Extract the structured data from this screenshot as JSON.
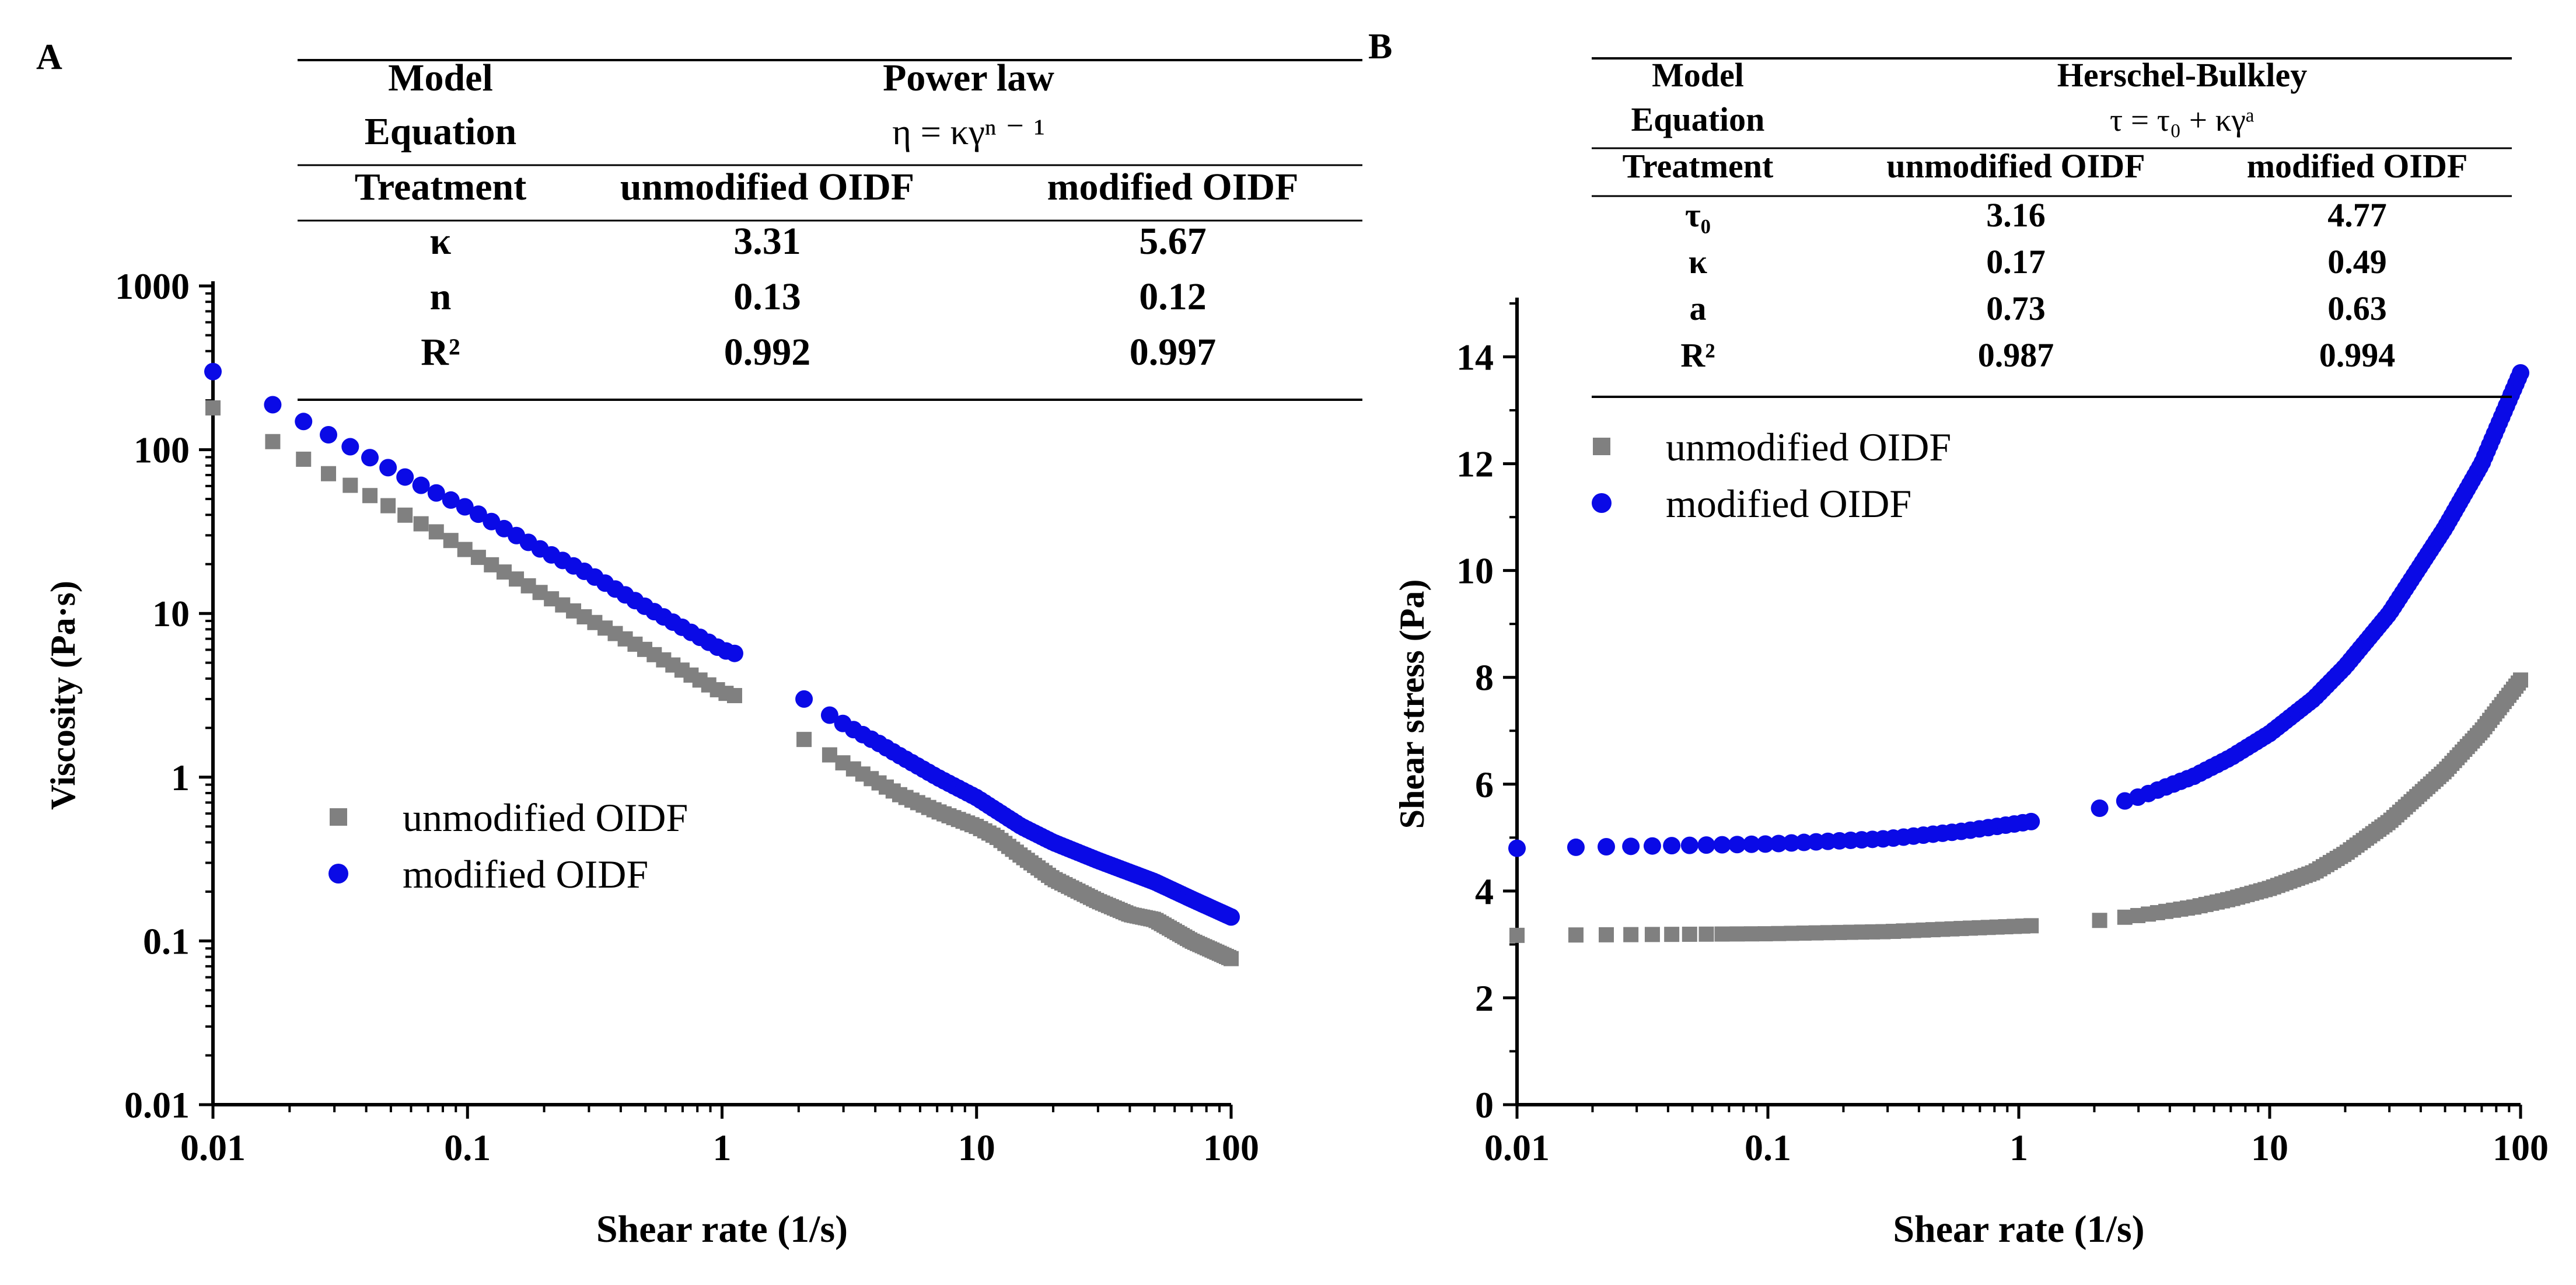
{
  "chart_data": [
    {
      "panel_label": "A",
      "type": "scatter",
      "x_scale": "log",
      "y_scale": "log",
      "xlabel": "Shear rate (1/s)",
      "ylabel": "Viscosity (Pa·s)",
      "xlim": [
        0.01,
        100
      ],
      "ylim": [
        0.01,
        1000
      ],
      "x_ticks": [
        "0.01",
        "0.1",
        "1",
        "10",
        "100"
      ],
      "y_ticks": [
        "0.01",
        "0.1",
        "1",
        "10",
        "100",
        "1000"
      ],
      "grid": false,
      "legend_position": "lower-left",
      "legend": [
        "unmodified OIDF",
        "modified OIDF"
      ],
      "series": [
        {
          "name": "unmodified OIDF",
          "color": "#808080",
          "marker": "square",
          "segments": [
            {
              "x_range": [
                0.01,
                1.12
              ],
              "count": 38,
              "anchors": [
                [
                  0.01,
                  180
                ],
                [
                  0.02,
                  98
                ],
                [
                  0.03,
                  68
                ],
                [
                  0.04,
                  54
                ],
                [
                  0.06,
                  38
                ],
                [
                  0.08,
                  30
                ],
                [
                  0.1,
                  24
                ],
                [
                  0.2,
                  13
                ],
                [
                  0.3,
                  9.2
                ],
                [
                  0.5,
                  6.0
                ],
                [
                  1.0,
                  3.3
                ],
                [
                  1.12,
                  3.15
                ]
              ]
            },
            {
              "x_range": [
                2.1,
                100
              ],
              "count": 110,
              "anchors": [
                [
                  2.1,
                  1.7
                ],
                [
                  3.1,
                  1.18
                ],
                [
                  4.1,
                  0.93
                ],
                [
                  5,
                  0.78
                ],
                [
                  7,
                  0.62
                ],
                [
                  10,
                  0.5
                ],
                [
                  12,
                  0.43
                ],
                [
                  15,
                  0.33
                ],
                [
                  20,
                  0.24
                ],
                [
                  30,
                  0.175
                ],
                [
                  40,
                  0.145
                ],
                [
                  50,
                  0.135
                ],
                [
                  70,
                  0.1
                ],
                [
                  100,
                  0.078
                ]
              ]
            }
          ]
        },
        {
          "name": "modified OIDF",
          "color": "#0a0ae6",
          "marker": "circle",
          "segments": [
            {
              "x_range": [
                0.01,
                1.12
              ],
              "count": 38,
              "anchors": [
                [
                  0.01,
                  300
                ],
                [
                  0.02,
                  165
                ],
                [
                  0.03,
                  118
                ],
                [
                  0.04,
                  92
                ],
                [
                  0.06,
                  65
                ],
                [
                  0.08,
                  52
                ],
                [
                  0.1,
                  44
                ],
                [
                  0.2,
                  24
                ],
                [
                  0.3,
                  17.5
                ],
                [
                  0.5,
                  11
                ],
                [
                  1.0,
                  6.0
                ],
                [
                  1.12,
                  5.7
                ]
              ]
            },
            {
              "x_range": [
                2.1,
                100
              ],
              "count": 110,
              "anchors": [
                [
                  2.1,
                  3.0
                ],
                [
                  3.1,
                  2.05
                ],
                [
                  4.1,
                  1.62
                ],
                [
                  5,
                  1.35
                ],
                [
                  7,
                  1.0
                ],
                [
                  10,
                  0.75
                ],
                [
                  15,
                  0.5
                ],
                [
                  20,
                  0.4
                ],
                [
                  30,
                  0.31
                ],
                [
                  50,
                  0.23
                ],
                [
                  70,
                  0.18
                ],
                [
                  100,
                  0.14
                ]
              ]
            }
          ]
        }
      ],
      "table": {
        "headers": [
          "Model",
          "Power law"
        ],
        "equation_label": "Equation",
        "equation": "η = κγⁿ ⁻ ¹",
        "columns": [
          "Treatment",
          "unmodified OIDF",
          "modified OIDF"
        ],
        "rows": [
          [
            "κ",
            "3.31",
            "5.67"
          ],
          [
            "n",
            "0.13",
            "0.12"
          ],
          [
            "R²",
            "0.992",
            "0.997"
          ]
        ]
      }
    },
    {
      "panel_label": "B",
      "type": "scatter",
      "x_scale": "log",
      "y_scale": "linear",
      "xlabel": "Shear rate (1/s)",
      "ylabel": "Shear stress (Pa)",
      "xlim": [
        0.01,
        100
      ],
      "ylim": [
        0,
        15
      ],
      "x_ticks": [
        "0.01",
        "0.1",
        "1",
        "10",
        "100"
      ],
      "y_ticks": [
        "0",
        "2",
        "4",
        "6",
        "8",
        "10",
        "12",
        "14"
      ],
      "grid": false,
      "legend_position": "upper-left",
      "legend": [
        "unmodified OIDF",
        "modified OIDF"
      ],
      "series": [
        {
          "name": "unmodified OIDF",
          "color": "#808080",
          "marker": "square",
          "segments": [
            {
              "x_range": [
                0.01,
                1.12
              ],
              "count": 38,
              "anchors": [
                [
                  0.01,
                  3.17
                ],
                [
                  0.1,
                  3.2
                ],
                [
                  0.3,
                  3.24
                ],
                [
                  0.6,
                  3.3
                ],
                [
                  1.12,
                  3.35
                ]
              ]
            },
            {
              "x_range": [
                2.1,
                100
              ],
              "count": 110,
              "anchors": [
                [
                  2.1,
                  3.45
                ],
                [
                  3.1,
                  3.55
                ],
                [
                  5,
                  3.7
                ],
                [
                  7,
                  3.85
                ],
                [
                  10,
                  4.05
                ],
                [
                  15,
                  4.35
                ],
                [
                  20,
                  4.7
                ],
                [
                  30,
                  5.3
                ],
                [
                  50,
                  6.25
                ],
                [
                  70,
                  7.0
                ],
                [
                  100,
                  7.95
                ]
              ]
            }
          ]
        },
        {
          "name": "modified OIDF",
          "color": "#0a0ae6",
          "marker": "circle",
          "segments": [
            {
              "x_range": [
                0.01,
                1.12
              ],
              "count": 38,
              "anchors": [
                [
                  0.01,
                  4.8
                ],
                [
                  0.1,
                  4.88
                ],
                [
                  0.3,
                  4.98
                ],
                [
                  0.6,
                  5.12
                ],
                [
                  1.12,
                  5.3
                ]
              ]
            },
            {
              "x_range": [
                2.1,
                100
              ],
              "count": 110,
              "anchors": [
                [
                  2.1,
                  5.55
                ],
                [
                  3.1,
                  5.78
                ],
                [
                  5,
                  6.15
                ],
                [
                  7,
                  6.5
                ],
                [
                  10,
                  6.95
                ],
                [
                  15,
                  7.6
                ],
                [
                  20,
                  8.2
                ],
                [
                  30,
                  9.2
                ],
                [
                  50,
                  10.8
                ],
                [
                  70,
                  12.0
                ],
                [
                  100,
                  13.7
                ]
              ]
            }
          ]
        }
      ],
      "table": {
        "headers": [
          "Model",
          "Herschel-Bulkley"
        ],
        "equation_label": "Equation",
        "equation": "τ = τ₀ + κγᵃ",
        "columns": [
          "Treatment",
          "unmodified OIDF",
          "modified OIDF"
        ],
        "rows": [
          [
            "τ₀",
            "3.16",
            "4.77"
          ],
          [
            "κ",
            "0.17",
            "0.49"
          ],
          [
            "a",
            "0.73",
            "0.63"
          ],
          [
            "R²",
            "0.987",
            "0.994"
          ]
        ]
      }
    }
  ]
}
